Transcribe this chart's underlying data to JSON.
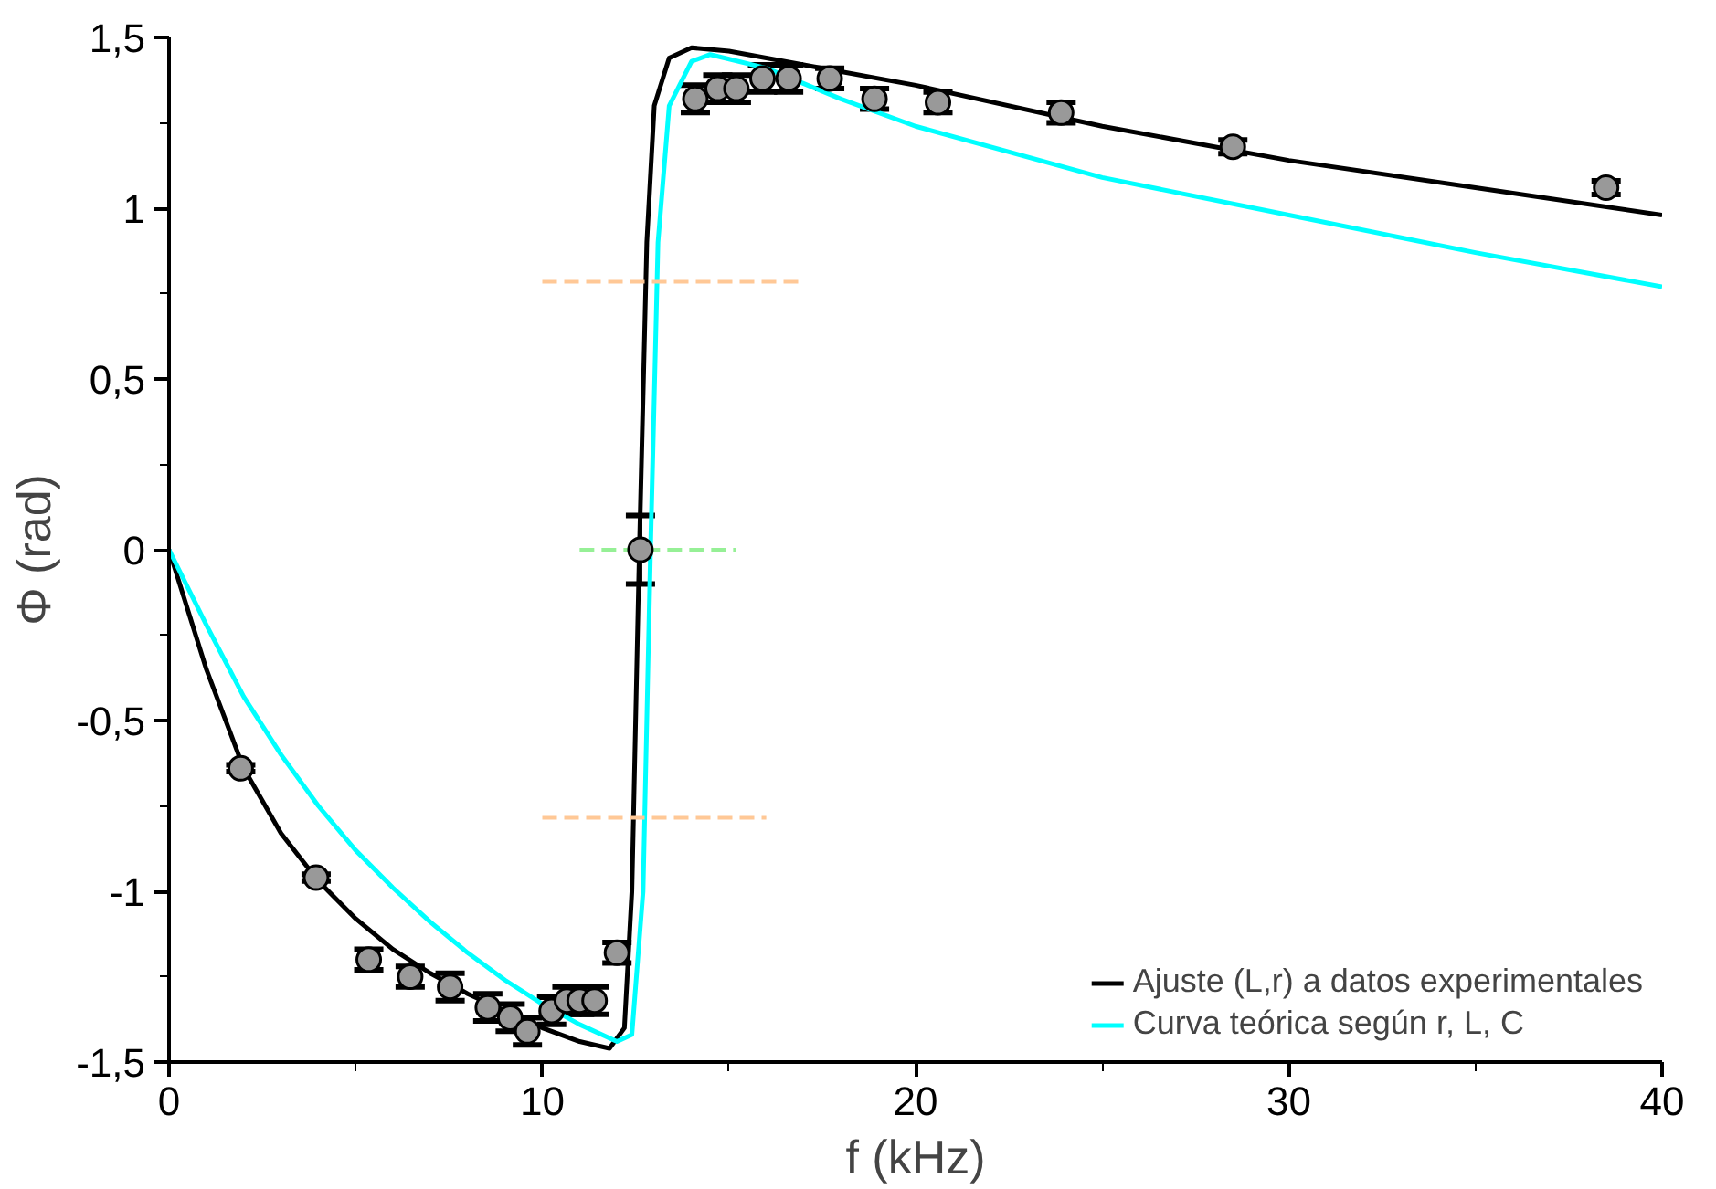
{
  "chart_data": {
    "type": "line",
    "xlabel": "f (kHz)",
    "ylabel": "Φ (rad)",
    "xlim": [
      0,
      40
    ],
    "ylim": [
      -1.5,
      1.5
    ],
    "xticks": [
      0,
      10,
      20,
      30,
      40
    ],
    "yticks": [
      {
        "value": -1.5,
        "label": "-1,5"
      },
      {
        "value": -1,
        "label": "-1"
      },
      {
        "value": -0.5,
        "label": "-0,5"
      },
      {
        "value": 0,
        "label": "0"
      },
      {
        "value": 0.5,
        "label": "0,5"
      },
      {
        "value": 1,
        "label": "1"
      },
      {
        "value": 1.5,
        "label": "1,5"
      }
    ],
    "grid": false,
    "legend": "bottom right",
    "series": [
      {
        "name": "Ajuste (L,r) a datos experimentales",
        "color": "#000000",
        "line_style": "solid",
        "x": [
          0,
          1,
          2,
          3,
          4,
          5,
          6,
          7,
          8,
          9,
          10,
          11,
          11.8,
          12.2,
          12.4,
          12.6,
          12.8,
          13.0,
          13.4,
          14,
          15,
          17,
          20,
          25,
          30,
          35,
          40
        ],
        "values": [
          0,
          -0.35,
          -0.64,
          -0.83,
          -0.97,
          -1.08,
          -1.17,
          -1.24,
          -1.3,
          -1.35,
          -1.4,
          -1.44,
          -1.46,
          -1.4,
          -1.0,
          0,
          0.9,
          1.3,
          1.44,
          1.47,
          1.46,
          1.42,
          1.36,
          1.24,
          1.14,
          1.06,
          0.98
        ]
      },
      {
        "name": "Curva teórica según r, L, C",
        "color": "#00ffff",
        "line_style": "solid",
        "x": [
          0,
          1,
          2,
          3,
          4,
          5,
          6,
          7,
          8,
          9,
          10,
          11,
          12,
          12.4,
          12.7,
          12.9,
          13.1,
          13.4,
          14,
          14.5,
          16,
          18,
          20,
          25,
          30,
          35,
          40
        ],
        "values": [
          0,
          -0.22,
          -0.43,
          -0.6,
          -0.75,
          -0.88,
          -0.99,
          -1.09,
          -1.18,
          -1.26,
          -1.33,
          -1.39,
          -1.44,
          -1.42,
          -1.0,
          0,
          0.9,
          1.3,
          1.43,
          1.45,
          1.41,
          1.32,
          1.24,
          1.09,
          0.98,
          0.87,
          0.77
        ]
      },
      {
        "color": "#ffc896",
        "line_style": "dashed",
        "x": [
          10,
          17
        ],
        "values": [
          0.785,
          0.785
        ]
      },
      {
        "color": "#ffc896",
        "line_style": "dashed",
        "x": [
          10,
          16
        ],
        "values": [
          -0.785,
          -0.785
        ]
      },
      {
        "color": "#96f096",
        "line_style": "dashed",
        "x": [
          11,
          15.2
        ],
        "values": [
          0,
          0
        ]
      },
      {
        "type": "scatter",
        "marker": "circle",
        "color": "#999999",
        "x": [
          1.92,
          3.94,
          5.35,
          6.46,
          7.53,
          8.54,
          9.14,
          9.6,
          10.25,
          10.66,
          11.0,
          11.4,
          12.0,
          12.63,
          14.1,
          14.7,
          15.2,
          15.9,
          16.6,
          17.7,
          18.9,
          20.6,
          23.9,
          28.5,
          38.5
        ],
        "values": [
          -0.64,
          -0.96,
          -1.2,
          -1.25,
          -1.28,
          -1.34,
          -1.37,
          -1.41,
          -1.35,
          -1.32,
          -1.32,
          -1.32,
          -1.18,
          0,
          1.32,
          1.35,
          1.35,
          1.38,
          1.38,
          1.38,
          1.32,
          1.31,
          1.28,
          1.18,
          1.06
        ],
        "errors": [
          0.01,
          0.01,
          0.03,
          0.03,
          0.04,
          0.04,
          0.04,
          0.04,
          0.04,
          0.04,
          0.04,
          0.04,
          0.03,
          0.1,
          0.04,
          0.04,
          0.04,
          0.04,
          0.04,
          0.03,
          0.03,
          0.03,
          0.03,
          0.02,
          0.02
        ]
      }
    ]
  }
}
